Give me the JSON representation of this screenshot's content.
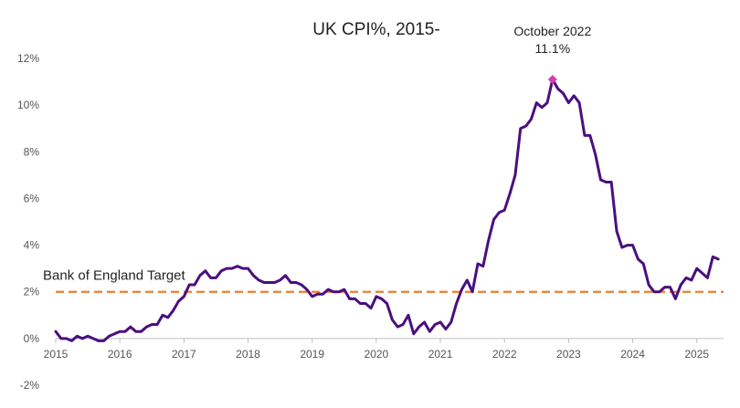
{
  "chart_data": {
    "type": "line",
    "title": "UK CPI%, 2015-",
    "xlabel": "",
    "ylabel": "",
    "x_ticks": [
      "2015",
      "2016",
      "2017",
      "2018",
      "2019",
      "2020",
      "2021",
      "2022",
      "2023",
      "2024",
      "2025"
    ],
    "y_ticks": [
      "-2%",
      "0%",
      "2%",
      "4%",
      "6%",
      "8%",
      "10%",
      "12%"
    ],
    "ylim": [
      -2,
      12
    ],
    "xlim": [
      "2015-01",
      "2025-06"
    ],
    "grid": "none",
    "legend": "none",
    "series": [
      {
        "name": "",
        "color": "#4b0f7f",
        "start": "2015-01",
        "frequency": "monthly",
        "values": [
          0.3,
          0.0,
          0.0,
          -0.1,
          0.1,
          0.0,
          0.1,
          0.0,
          -0.1,
          -0.1,
          0.1,
          0.2,
          0.3,
          0.3,
          0.5,
          0.3,
          0.3,
          0.5,
          0.6,
          0.6,
          1.0,
          0.9,
          1.2,
          1.6,
          1.8,
          2.3,
          2.3,
          2.7,
          2.9,
          2.6,
          2.6,
          2.9,
          3.0,
          3.0,
          3.1,
          3.0,
          3.0,
          2.7,
          2.5,
          2.4,
          2.4,
          2.4,
          2.5,
          2.7,
          2.4,
          2.4,
          2.3,
          2.1,
          1.8,
          1.9,
          1.9,
          2.1,
          2.0,
          2.0,
          2.1,
          1.7,
          1.7,
          1.5,
          1.5,
          1.3,
          1.8,
          1.7,
          1.5,
          0.8,
          0.5,
          0.6,
          1.0,
          0.2,
          0.5,
          0.7,
          0.3,
          0.6,
          0.7,
          0.4,
          0.7,
          1.5,
          2.1,
          2.5,
          2.0,
          3.2,
          3.1,
          4.2,
          5.1,
          5.4,
          5.5,
          6.2,
          7.0,
          9.0,
          9.1,
          9.4,
          10.1,
          9.9,
          10.1,
          11.1,
          10.7,
          10.5,
          10.1,
          10.4,
          10.1,
          8.7,
          8.7,
          7.9,
          6.8,
          6.7,
          6.7,
          4.6,
          3.9,
          4.0,
          4.0,
          3.4,
          3.2,
          2.3,
          2.0,
          2.0,
          2.2,
          2.2,
          1.7,
          2.3,
          2.6,
          2.5,
          3.0,
          2.8,
          2.6,
          3.5,
          3.4
        ]
      },
      {
        "name": "Bank of England Target",
        "color": "#ed7d31",
        "style": "dashed",
        "value": 2
      }
    ],
    "annotations": [
      {
        "label": "October 2022",
        "value_label": "11.1%",
        "x": "2022-10",
        "y": 11.1,
        "marker_color": "#d63fb0"
      }
    ]
  }
}
